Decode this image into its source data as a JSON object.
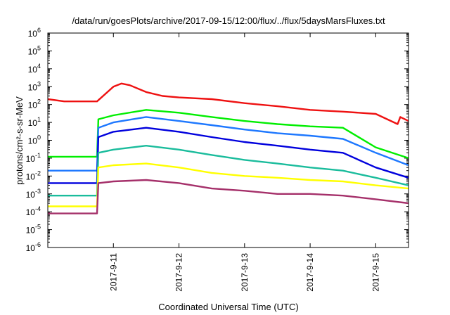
{
  "chart_data": {
    "type": "line",
    "title": "/data/run/goesPlots/archive/2017-09-15/12:00/flux/../flux/5daysMarsFluxes.txt",
    "xlabel": "Coordinated Universal Time (UTC)",
    "ylabel": "protons/cm²-s-sr-MeV",
    "y_scale": "log",
    "ylim": [
      1e-06,
      1000000.0
    ],
    "y_ticks": [
      {
        "base": "10",
        "exp": "-6",
        "value": 1e-06
      },
      {
        "base": "10",
        "exp": "-5",
        "value": 1e-05
      },
      {
        "base": "10",
        "exp": "-4",
        "value": 0.0001
      },
      {
        "base": "10",
        "exp": "-3",
        "value": 0.001
      },
      {
        "base": "10",
        "exp": "-2",
        "value": 0.01
      },
      {
        "base": "10",
        "exp": "-1",
        "value": 0.1
      },
      {
        "base": "10",
        "exp": "0",
        "value": 1
      },
      {
        "base": "10",
        "exp": "1",
        "value": 10
      },
      {
        "base": "10",
        "exp": "2",
        "value": 100
      },
      {
        "base": "10",
        "exp": "3",
        "value": 1000
      },
      {
        "base": "10",
        "exp": "4",
        "value": 10000
      },
      {
        "base": "10",
        "exp": "5",
        "value": 100000
      },
      {
        "base": "10",
        "exp": "6",
        "value": 1000000
      }
    ],
    "xlim": [
      "2017-09-10T00:00",
      "2017-09-15T12:00"
    ],
    "x_ticks": [
      {
        "label": "2017-9-11",
        "value": "2017-09-11"
      },
      {
        "label": "2017-9-12",
        "value": "2017-09-12"
      },
      {
        "label": "2017-9-13",
        "value": "2017-09-13"
      },
      {
        "label": "2017-9-14",
        "value": "2017-09-14"
      },
      {
        "label": "2017-9-15",
        "value": "2017-09-15"
      }
    ],
    "grid": false,
    "legend": "none",
    "series": [
      {
        "color": "#ee1111",
        "x": [
          "2017-09-10T00:00",
          "2017-09-10T06:00",
          "2017-09-10T12:00",
          "2017-09-10T18:00",
          "2017-09-11T00:00",
          "2017-09-11T03:00",
          "2017-09-11T06:00",
          "2017-09-11T12:00",
          "2017-09-11T18:00",
          "2017-09-12T00:00",
          "2017-09-12T12:00",
          "2017-09-13T00:00",
          "2017-09-13T12:00",
          "2017-09-14T00:00",
          "2017-09-14T12:00",
          "2017-09-15T00:00",
          "2017-09-15T08:00",
          "2017-09-15T09:00",
          "2017-09-15T12:00"
        ],
        "values": [
          200,
          150,
          150,
          150,
          1000,
          1500,
          1200,
          500,
          300,
          250,
          200,
          120,
          80,
          50,
          40,
          30,
          8,
          20,
          12
        ]
      },
      {
        "color": "#00ee00",
        "x": [
          "2017-09-10T00:00",
          "2017-09-10T18:00",
          "2017-09-10T18:30",
          "2017-09-11T00:00",
          "2017-09-11T12:00",
          "2017-09-12T00:00",
          "2017-09-12T12:00",
          "2017-09-13T00:00",
          "2017-09-13T12:00",
          "2017-09-14T00:00",
          "2017-09-14T12:00",
          "2017-09-15T00:00",
          "2017-09-15T12:00"
        ],
        "values": [
          0.12,
          0.12,
          15,
          25,
          50,
          35,
          20,
          12,
          8,
          6,
          5,
          0.4,
          0.1
        ]
      },
      {
        "color": "#1e78ff",
        "x": [
          "2017-09-10T00:00",
          "2017-09-10T18:00",
          "2017-09-10T18:30",
          "2017-09-11T00:00",
          "2017-09-11T12:00",
          "2017-09-12T00:00",
          "2017-09-12T12:00",
          "2017-09-13T00:00",
          "2017-09-13T12:00",
          "2017-09-14T00:00",
          "2017-09-14T12:00",
          "2017-09-15T00:00",
          "2017-09-15T12:00"
        ],
        "values": [
          0.02,
          0.02,
          5,
          10,
          20,
          12,
          7,
          4,
          2.5,
          1.8,
          1.2,
          0.2,
          0.04
        ]
      },
      {
        "color": "#0000dd",
        "x": [
          "2017-09-10T00:00",
          "2017-09-10T18:00",
          "2017-09-10T18:30",
          "2017-09-11T00:00",
          "2017-09-11T12:00",
          "2017-09-12T00:00",
          "2017-09-12T12:00",
          "2017-09-13T00:00",
          "2017-09-13T12:00",
          "2017-09-14T00:00",
          "2017-09-14T12:00",
          "2017-09-15T00:00",
          "2017-09-15T12:00"
        ],
        "values": [
          0.004,
          0.004,
          1.5,
          3,
          5,
          3,
          1.5,
          0.8,
          0.5,
          0.3,
          0.2,
          0.03,
          0.008
        ]
      },
      {
        "color": "#1abc9c",
        "x": [
          "2017-09-10T00:00",
          "2017-09-10T18:00",
          "2017-09-10T18:30",
          "2017-09-11T00:00",
          "2017-09-11T12:00",
          "2017-09-12T00:00",
          "2017-09-12T12:00",
          "2017-09-13T00:00",
          "2017-09-13T12:00",
          "2017-09-14T00:00",
          "2017-09-14T12:00",
          "2017-09-15T00:00",
          "2017-09-15T12:00"
        ],
        "values": [
          0.0008,
          0.0008,
          0.2,
          0.3,
          0.5,
          0.3,
          0.15,
          0.08,
          0.05,
          0.03,
          0.02,
          0.008,
          0.003
        ]
      },
      {
        "color": "#ffff00",
        "x": [
          "2017-09-10T00:00",
          "2017-09-10T18:00",
          "2017-09-10T18:30",
          "2017-09-11T00:00",
          "2017-09-11T12:00",
          "2017-09-12T00:00",
          "2017-09-12T12:00",
          "2017-09-13T00:00",
          "2017-09-13T12:00",
          "2017-09-14T00:00",
          "2017-09-14T12:00",
          "2017-09-15T00:00",
          "2017-09-15T12:00"
        ],
        "values": [
          0.0002,
          0.0002,
          0.03,
          0.04,
          0.05,
          0.03,
          0.015,
          0.01,
          0.008,
          0.006,
          0.005,
          0.003,
          0.002
        ]
      },
      {
        "color": "#a5306a",
        "x": [
          "2017-09-10T00:00",
          "2017-09-10T18:00",
          "2017-09-10T18:30",
          "2017-09-11T00:00",
          "2017-09-11T12:00",
          "2017-09-12T00:00",
          "2017-09-12T12:00",
          "2017-09-13T00:00",
          "2017-09-13T12:00",
          "2017-09-14T00:00",
          "2017-09-14T12:00",
          "2017-09-15T00:00",
          "2017-09-15T12:00"
        ],
        "values": [
          8e-05,
          8e-05,
          0.004,
          0.005,
          0.006,
          0.004,
          0.002,
          0.0015,
          0.001,
          0.001,
          0.0008,
          0.0005,
          0.0003
        ]
      }
    ]
  }
}
